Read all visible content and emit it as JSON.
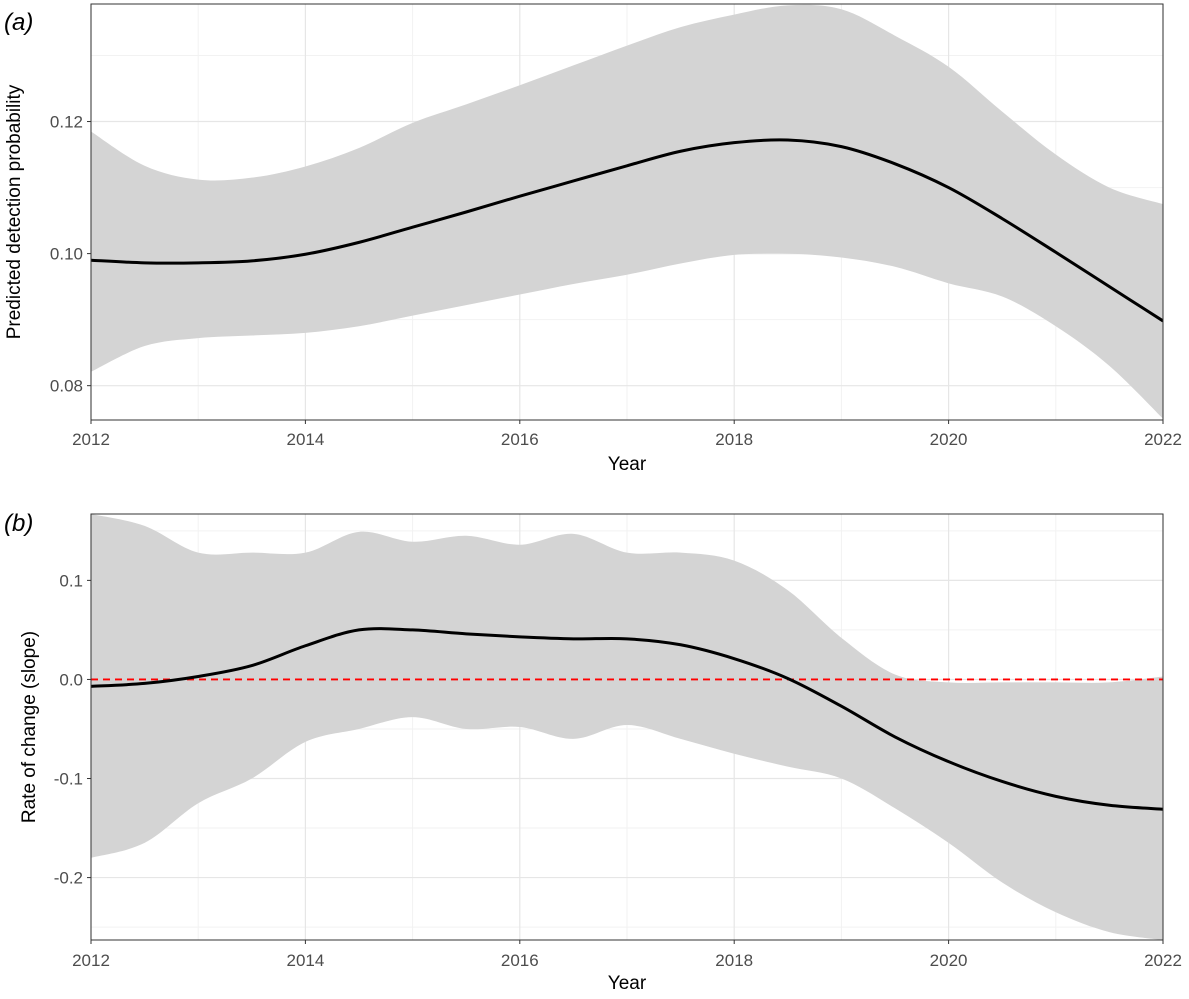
{
  "colors": {
    "band": "#d4d4d4",
    "line": "#000000",
    "reference": "#ff0000",
    "grid_major": "#e6e6e6",
    "grid_minor": "#f2f2f2",
    "panel_border": "#333333"
  },
  "chart_data": [
    {
      "type": "line",
      "panel_tag": "(a)",
      "xlabel": "Year",
      "ylabel": "Predicted detection probability",
      "xlim": [
        2012,
        2022
      ],
      "ylim": [
        0.0748,
        0.1378
      ],
      "xticks": [
        2012,
        2014,
        2016,
        2018,
        2020,
        2022
      ],
      "xtick_labels": [
        "2012",
        "2014",
        "2016",
        "2018",
        "2020",
        "2022"
      ],
      "yticks": [
        0.08,
        0.1,
        0.12
      ],
      "ytick_labels": [
        "0.08",
        "0.10",
        "0.12"
      ],
      "grid": true,
      "x": [
        2012,
        2012.5,
        2013,
        2013.5,
        2014,
        2014.5,
        2015,
        2015.5,
        2016,
        2016.5,
        2017,
        2017.5,
        2018,
        2018.5,
        2019,
        2019.5,
        2020,
        2020.5,
        2021,
        2021.5,
        2022
      ],
      "series": [
        {
          "values": [
            0.099,
            0.0986,
            0.0986,
            0.0989,
            0.0999,
            0.1017,
            0.104,
            0.1063,
            0.1087,
            0.111,
            0.1133,
            0.1155,
            0.1168,
            0.1172,
            0.1162,
            0.1136,
            0.11,
            0.1053,
            0.1002,
            0.095,
            0.0898
          ],
          "lower": [
            0.0821,
            0.086,
            0.0872,
            0.0876,
            0.088,
            0.089,
            0.0906,
            0.0922,
            0.0938,
            0.0954,
            0.0968,
            0.0985,
            0.0998,
            0.1,
            0.0994,
            0.098,
            0.0955,
            0.0935,
            0.089,
            0.083,
            0.075
          ],
          "upper": [
            0.1185,
            0.1133,
            0.1112,
            0.1115,
            0.1132,
            0.116,
            0.1198,
            0.1226,
            0.1255,
            0.1285,
            0.1315,
            0.1343,
            0.1362,
            0.1376,
            0.137,
            0.133,
            0.1283,
            0.1215,
            0.115,
            0.11,
            0.1075
          ]
        }
      ]
    },
    {
      "type": "line",
      "panel_tag": "(b)",
      "xlabel": "Year",
      "ylabel": "Rate of change (slope)",
      "xlim": [
        2012,
        2022
      ],
      "ylim": [
        -0.263,
        0.167
      ],
      "xticks": [
        2012,
        2014,
        2016,
        2018,
        2020,
        2022
      ],
      "xtick_labels": [
        "2012",
        "2014",
        "2016",
        "2018",
        "2020",
        "2022"
      ],
      "yticks": [
        -0.2,
        -0.1,
        0.0,
        0.1
      ],
      "ytick_labels": [
        "-0.2",
        "-0.1",
        "0.0",
        "0.1"
      ],
      "grid": true,
      "reference_line": {
        "y": 0,
        "style": "dashed"
      },
      "x": [
        2012,
        2012.5,
        2013,
        2013.5,
        2014,
        2014.5,
        2015,
        2015.5,
        2016,
        2016.5,
        2017,
        2017.5,
        2018,
        2018.5,
        2019,
        2019.5,
        2020,
        2020.5,
        2021,
        2021.5,
        2022
      ],
      "series": [
        {
          "values": [
            -0.007,
            -0.004,
            0.003,
            0.014,
            0.034,
            0.05,
            0.05,
            0.046,
            0.043,
            0.041,
            0.041,
            0.035,
            0.021,
            0.001,
            -0.027,
            -0.058,
            -0.083,
            -0.103,
            -0.118,
            -0.127,
            -0.131
          ],
          "lower": [
            -0.18,
            -0.165,
            -0.125,
            -0.1,
            -0.063,
            -0.05,
            -0.038,
            -0.05,
            -0.048,
            -0.06,
            -0.046,
            -0.06,
            -0.075,
            -0.088,
            -0.1,
            -0.13,
            -0.165,
            -0.205,
            -0.235,
            -0.255,
            -0.263
          ],
          "upper": [
            0.167,
            0.155,
            0.128,
            0.128,
            0.128,
            0.149,
            0.139,
            0.145,
            0.136,
            0.147,
            0.128,
            0.128,
            0.12,
            0.09,
            0.042,
            0.005,
            -0.003,
            -0.003,
            -0.003,
            -0.003,
            0.003
          ]
        }
      ]
    }
  ]
}
